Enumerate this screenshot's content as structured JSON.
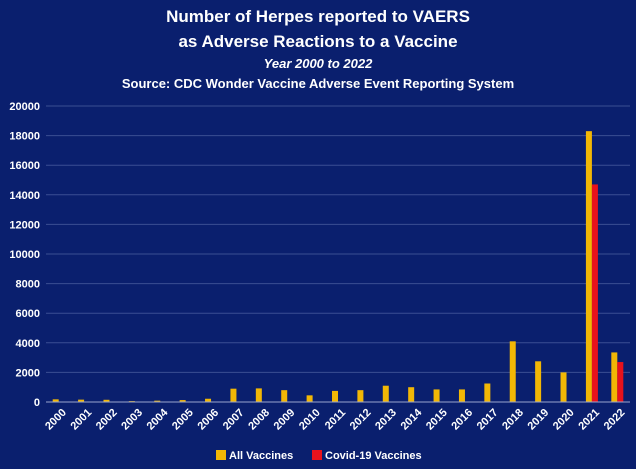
{
  "chart_data": {
    "type": "bar",
    "title_line1": "Number of Herpes reported to VAERS",
    "title_line2": "as Adverse Reactions to a Vaccine",
    "subtitle": "Year 2000 to 2022",
    "source": "Source: CDC Wonder Vaccine Adverse Event Reporting System",
    "categories": [
      "2000",
      "2001",
      "2002",
      "2003",
      "2004",
      "2005",
      "2006",
      "2007",
      "2008",
      "2009",
      "2010",
      "2011",
      "2012",
      "2013",
      "2014",
      "2015",
      "2016",
      "2017",
      "2018",
      "2019",
      "2020",
      "2021",
      "2022"
    ],
    "series": [
      {
        "name": "All Vaccines",
        "color": "#f2b705",
        "values": [
          180,
          160,
          150,
          60,
          90,
          130,
          220,
          900,
          920,
          800,
          450,
          750,
          800,
          1100,
          1000,
          850,
          850,
          1250,
          4100,
          2750,
          2000,
          18300,
          3350
        ]
      },
      {
        "name": "Covid-19 Vaccines",
        "color": "#e8121c",
        "values": [
          0,
          0,
          0,
          0,
          0,
          0,
          0,
          0,
          0,
          0,
          0,
          0,
          0,
          0,
          0,
          0,
          0,
          0,
          0,
          0,
          0,
          14700,
          2700
        ]
      }
    ],
    "yticks": [
      "0",
      "2000",
      "4000",
      "6000",
      "8000",
      "10000",
      "12000",
      "14000",
      "16000",
      "18000",
      "20000"
    ],
    "ylim": [
      0,
      20000
    ],
    "grid": true,
    "legend_position": "bottom"
  }
}
